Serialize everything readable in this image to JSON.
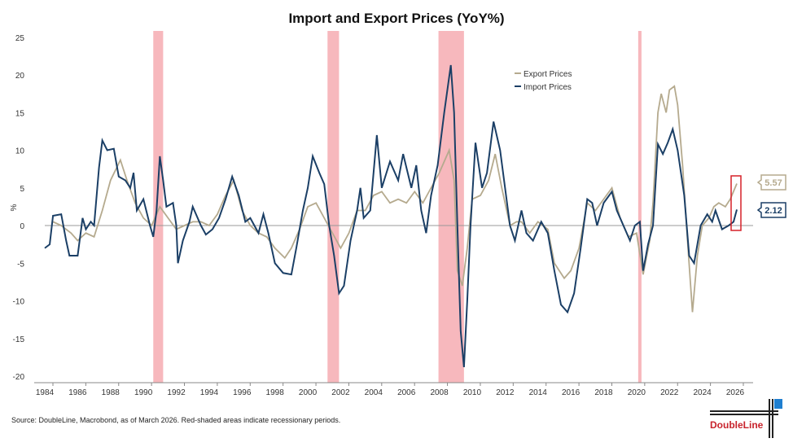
{
  "chart_data": {
    "type": "line",
    "title": "Import and Export Prices (YoY%)",
    "ylabel": "%",
    "xlim": [
      1984,
      2026.9
    ],
    "ylim": [
      -20,
      25
    ],
    "xticks": [
      1984,
      1986,
      1988,
      1990,
      1992,
      1994,
      1996,
      1998,
      2000,
      2002,
      2004,
      2006,
      2008,
      2010,
      2012,
      2014,
      2016,
      2018,
      2020,
      2022,
      2024,
      2026
    ],
    "yticks": [
      25,
      20,
      15,
      10,
      5,
      0,
      -5,
      -10,
      -15,
      -20
    ],
    "legend_position": "top-center",
    "recessions": [
      [
        1990.6,
        1991.2
      ],
      [
        2001.2,
        2001.9
      ],
      [
        2007.95,
        2009.5
      ],
      [
        2020.1,
        2020.3
      ]
    ],
    "series": [
      {
        "name": "Export Prices",
        "color": "#b5aa8e",
        "end_label": "5.57",
        "points": [
          [
            1984.5,
            0.5
          ],
          [
            1985,
            0
          ],
          [
            1985.6,
            -1
          ],
          [
            1986,
            -2
          ],
          [
            1986.5,
            -1
          ],
          [
            1987,
            -1.5
          ],
          [
            1987.5,
            2
          ],
          [
            1988,
            6
          ],
          [
            1988.6,
            8.7
          ],
          [
            1989,
            6
          ],
          [
            1989.5,
            3
          ],
          [
            1990,
            1
          ],
          [
            1990.5,
            0
          ],
          [
            1991,
            2.5
          ],
          [
            1991.5,
            1
          ],
          [
            1992,
            -0.5
          ],
          [
            1992.5,
            0
          ],
          [
            1993,
            0.5
          ],
          [
            1993.5,
            0.5
          ],
          [
            1994,
            0
          ],
          [
            1994.5,
            1.5
          ],
          [
            1995,
            4
          ],
          [
            1995.5,
            6
          ],
          [
            1996,
            2
          ],
          [
            1996.5,
            0
          ],
          [
            1997,
            -1
          ],
          [
            1997.5,
            -1.5
          ],
          [
            1998,
            -3
          ],
          [
            1998.6,
            -4.3
          ],
          [
            1999,
            -3
          ],
          [
            1999.5,
            -0.5
          ],
          [
            2000,
            2.5
          ],
          [
            2000.5,
            3
          ],
          [
            2001,
            1
          ],
          [
            2001.5,
            -1
          ],
          [
            2002,
            -3
          ],
          [
            2002.5,
            -1
          ],
          [
            2003,
            2
          ],
          [
            2003.5,
            2
          ],
          [
            2004,
            4
          ],
          [
            2004.5,
            4.5
          ],
          [
            2005,
            3
          ],
          [
            2005.5,
            3.5
          ],
          [
            2006,
            3
          ],
          [
            2006.5,
            4.5
          ],
          [
            2007,
            3
          ],
          [
            2007.5,
            5
          ],
          [
            2008,
            7
          ],
          [
            2008.6,
            10
          ],
          [
            2008.9,
            6
          ],
          [
            2009.1,
            -6
          ],
          [
            2009.4,
            -8
          ],
          [
            2009.7,
            -3
          ],
          [
            2010,
            3.5
          ],
          [
            2010.5,
            4
          ],
          [
            2011,
            6
          ],
          [
            2011.4,
            9.5
          ],
          [
            2011.8,
            5
          ],
          [
            2012.3,
            0
          ],
          [
            2012.7,
            0.5
          ],
          [
            2013,
            0.5
          ],
          [
            2013.5,
            -1
          ],
          [
            2014,
            0.5
          ],
          [
            2014.6,
            -0.5
          ],
          [
            2015,
            -5
          ],
          [
            2015.6,
            -7
          ],
          [
            2016,
            -6
          ],
          [
            2016.5,
            -3
          ],
          [
            2017,
            3
          ],
          [
            2017.5,
            2
          ],
          [
            2018,
            3.5
          ],
          [
            2018.5,
            5
          ],
          [
            2019,
            1
          ],
          [
            2019.5,
            -1.5
          ],
          [
            2020,
            -1
          ],
          [
            2020.4,
            -6.5
          ],
          [
            2020.8,
            -2
          ],
          [
            2021,
            3
          ],
          [
            2021.3,
            15
          ],
          [
            2021.5,
            17.5
          ],
          [
            2021.8,
            15
          ],
          [
            2022,
            18
          ],
          [
            2022.3,
            18.5
          ],
          [
            2022.5,
            16
          ],
          [
            2022.8,
            8
          ],
          [
            2023.1,
            -2
          ],
          [
            2023.4,
            -11.5
          ],
          [
            2023.7,
            -4
          ],
          [
            2024,
            0
          ],
          [
            2024.4,
            1
          ],
          [
            2024.7,
            2.5
          ],
          [
            2025,
            3
          ],
          [
            2025.4,
            2.5
          ],
          [
            2025.7,
            3.5
          ],
          [
            2026.1,
            5.57
          ]
        ]
      },
      {
        "name": "Import Prices",
        "color": "#1b3f66",
        "end_label": "2.12",
        "points": [
          [
            1984,
            -3
          ],
          [
            1984.3,
            -2.5
          ],
          [
            1984.5,
            1.3
          ],
          [
            1985,
            1.5
          ],
          [
            1985.3,
            -2
          ],
          [
            1985.5,
            -4
          ],
          [
            1986,
            -4
          ],
          [
            1986.3,
            1
          ],
          [
            1986.5,
            -0.5
          ],
          [
            1986.8,
            0.5
          ],
          [
            1987,
            0
          ],
          [
            1987.3,
            7.7
          ],
          [
            1987.5,
            11.3
          ],
          [
            1987.8,
            10
          ],
          [
            1988.2,
            10.2
          ],
          [
            1988.5,
            6.5
          ],
          [
            1988.9,
            6
          ],
          [
            1989.2,
            5
          ],
          [
            1989.4,
            7
          ],
          [
            1989.6,
            2
          ],
          [
            1990,
            3.5
          ],
          [
            1990.4,
            0
          ],
          [
            1990.6,
            -1.5
          ],
          [
            1990.8,
            2
          ],
          [
            1991,
            9.2
          ],
          [
            1991.2,
            6
          ],
          [
            1991.4,
            2.5
          ],
          [
            1991.8,
            3
          ],
          [
            1992,
            0
          ],
          [
            1992.1,
            -5
          ],
          [
            1992.4,
            -2
          ],
          [
            1992.8,
            0.5
          ],
          [
            1993,
            2.5
          ],
          [
            1993.5,
            0
          ],
          [
            1993.8,
            -1.2
          ],
          [
            1994.2,
            -0.5
          ],
          [
            1994.6,
            1
          ],
          [
            1995,
            3.5
          ],
          [
            1995.4,
            6.5
          ],
          [
            1995.8,
            4
          ],
          [
            1996.2,
            0.5
          ],
          [
            1996.5,
            1
          ],
          [
            1997,
            -1
          ],
          [
            1997.3,
            1.5
          ],
          [
            1997.6,
            -1
          ],
          [
            1998,
            -5
          ],
          [
            1998.5,
            -6.3
          ],
          [
            1999,
            -6.5
          ],
          [
            1999.3,
            -3
          ],
          [
            1999.7,
            2
          ],
          [
            2000,
            5
          ],
          [
            2000.3,
            9.2
          ],
          [
            2000.7,
            7
          ],
          [
            2001,
            5.5
          ],
          [
            2001.3,
            0
          ],
          [
            2001.6,
            -4
          ],
          [
            2001.9,
            -9
          ],
          [
            2002.2,
            -8
          ],
          [
            2002.6,
            -2
          ],
          [
            2003,
            2
          ],
          [
            2003.2,
            5
          ],
          [
            2003.4,
            1
          ],
          [
            2003.8,
            2
          ],
          [
            2004.2,
            12
          ],
          [
            2004.5,
            5
          ],
          [
            2005,
            8.5
          ],
          [
            2005.5,
            6
          ],
          [
            2005.8,
            9.5
          ],
          [
            2006.3,
            5
          ],
          [
            2006.6,
            8
          ],
          [
            2006.9,
            2
          ],
          [
            2007.2,
            -1
          ],
          [
            2007.5,
            4
          ],
          [
            2007.9,
            8
          ],
          [
            2008.3,
            15
          ],
          [
            2008.7,
            21.3
          ],
          [
            2008.9,
            15
          ],
          [
            2009.1,
            0
          ],
          [
            2009.3,
            -14
          ],
          [
            2009.5,
            -18.8
          ],
          [
            2009.7,
            -10
          ],
          [
            2009.9,
            0
          ],
          [
            2010.2,
            11
          ],
          [
            2010.6,
            5
          ],
          [
            2010.9,
            7
          ],
          [
            2011.3,
            13.8
          ],
          [
            2011.7,
            10
          ],
          [
            2012,
            5
          ],
          [
            2012.3,
            0
          ],
          [
            2012.6,
            -2
          ],
          [
            2013,
            2
          ],
          [
            2013.3,
            -1
          ],
          [
            2013.7,
            -2
          ],
          [
            2014.2,
            0.5
          ],
          [
            2014.6,
            -1
          ],
          [
            2015,
            -6
          ],
          [
            2015.4,
            -10.5
          ],
          [
            2015.8,
            -11.5
          ],
          [
            2016.2,
            -9
          ],
          [
            2016.6,
            -3
          ],
          [
            2017,
            3.5
          ],
          [
            2017.3,
            3
          ],
          [
            2017.6,
            0
          ],
          [
            2018,
            3
          ],
          [
            2018.5,
            4.5
          ],
          [
            2018.8,
            2
          ],
          [
            2019.2,
            0
          ],
          [
            2019.6,
            -2
          ],
          [
            2019.9,
            0
          ],
          [
            2020.2,
            0.5
          ],
          [
            2020.4,
            -6
          ],
          [
            2020.7,
            -2.5
          ],
          [
            2021,
            0
          ],
          [
            2021.3,
            10.8
          ],
          [
            2021.6,
            9.5
          ],
          [
            2021.9,
            11
          ],
          [
            2022.2,
            12.8
          ],
          [
            2022.5,
            10
          ],
          [
            2022.9,
            4
          ],
          [
            2023.2,
            -4
          ],
          [
            2023.5,
            -5
          ],
          [
            2023.9,
            0
          ],
          [
            2024.3,
            1.5
          ],
          [
            2024.6,
            0.5
          ],
          [
            2024.8,
            2
          ],
          [
            2025.2,
            -0.5
          ],
          [
            2025.6,
            0
          ],
          [
            2025.9,
            0.5
          ],
          [
            2026.1,
            2.12
          ]
        ]
      }
    ],
    "recession_color": "#f7b8bd",
    "highlight_box_color": "#d62028"
  },
  "footer": {
    "source": "Source: DoubleLine, Macrobond, as of March 2026. Red-shaded areas indicate recessionary periods.",
    "logo_text": "DoubleLine"
  }
}
